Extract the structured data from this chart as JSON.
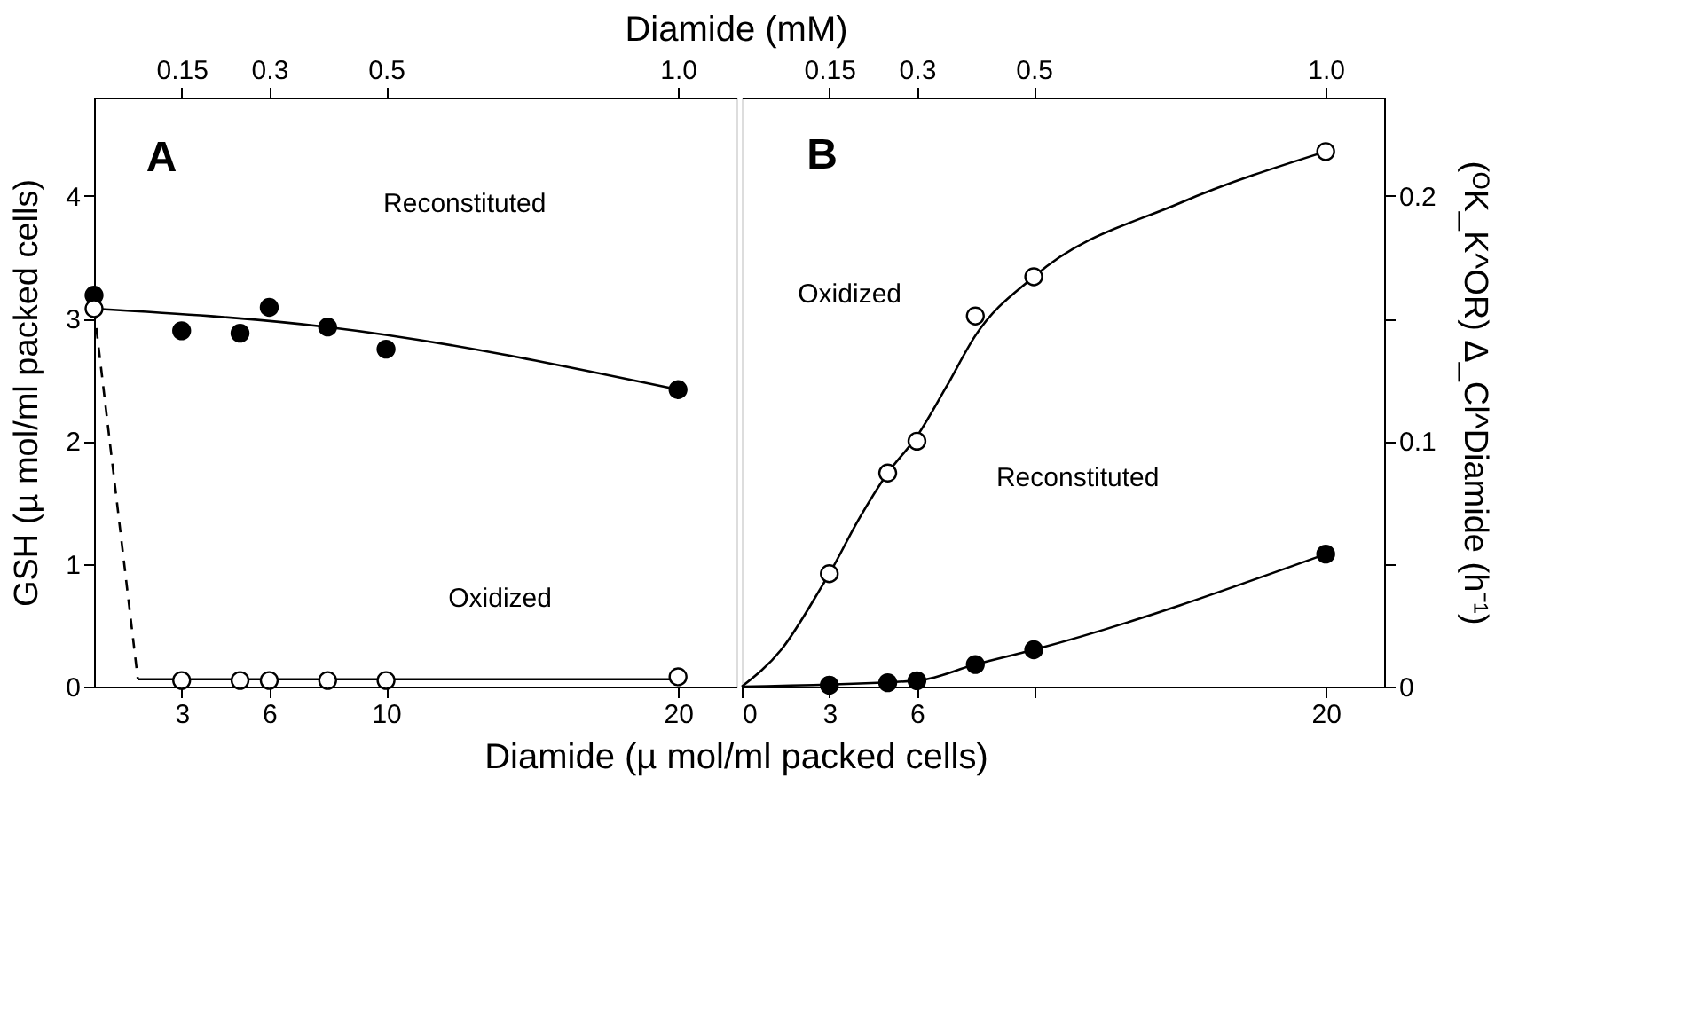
{
  "chart_data": [
    {
      "type": "scatter",
      "xlabel": "Diamide (µ mol/ml packed cells)",
      "x2label": "Diamide (mM)",
      "ylabel": "GSH (µ mol/ml packed cells)",
      "xlim": [
        0,
        22
      ],
      "xticks": [
        3,
        6,
        10,
        20
      ],
      "x2lim": [
        0,
        1.1
      ],
      "x2ticks": [
        0.15,
        0.3,
        0.5,
        {
          "value": 1.0,
          "label": "1.0"
        }
      ],
      "ylim": [
        0,
        4.8
      ],
      "yticks": [
        0,
        1,
        2,
        3,
        4
      ],
      "grid": false,
      "series": [
        {
          "type": "line",
          "color": "#000000",
          "line_style": "solid",
          "x": [
            0,
            8,
            20
          ],
          "values": [
            3.08,
            2.93,
            2.42
          ]
        },
        {
          "type": "line",
          "color": "#000000",
          "line_style": "dashed",
          "x": [
            0,
            1.5
          ],
          "values": [
            3.08,
            0.06
          ]
        },
        {
          "type": "line",
          "color": "#000000",
          "line_style": "solid",
          "x": [
            1.5,
            20
          ],
          "values": [
            0.06,
            0.06
          ]
        },
        {
          "color": "#000000",
          "marker": "circle",
          "x": [
            0,
            3,
            5,
            6,
            8,
            10,
            20
          ],
          "values": [
            3.19,
            2.9,
            2.88,
            3.09,
            2.93,
            2.75,
            2.42
          ]
        },
        {
          "color": "#ffffff",
          "marker": "circle",
          "x": [
            0,
            3,
            5,
            6,
            8,
            10,
            20
          ],
          "values": [
            3.08,
            0.05,
            0.05,
            0.05,
            0.05,
            0.05,
            0.08
          ]
        }
      ],
      "annotations": [
        "A",
        "Reconstituted",
        "Oxidized"
      ]
    },
    {
      "type": "scatter",
      "y2label": "(ᴼK_K^OR) Δ_Cl^Diamide (h⁻¹)",
      "xlim": [
        0,
        22
      ],
      "xticks": [
        0,
        3,
        6,
        {
          "value": 10,
          "label": null
        },
        20
      ],
      "x2lim": [
        0,
        1.1
      ],
      "x2ticks": [
        0.15,
        0.3,
        0.5,
        {
          "value": 1.0,
          "label": "1.0"
        }
      ],
      "y2lim": [
        0,
        0.24
      ],
      "y2ticks": [
        0,
        {
          "value": 0.05,
          "label": null
        },
        0.1,
        {
          "value": 0.15,
          "label": null
        },
        0.2
      ],
      "grid": false,
      "series": [
        {
          "type": "line",
          "axis": "y2",
          "color": "#000000",
          "line_style": "solid",
          "x": [
            0,
            1.35,
            2.75,
            3,
            4,
            5,
            6,
            7,
            8,
            10,
            15,
            20
          ],
          "values": [
            0,
            0.015,
            0.041,
            0.046,
            0.068,
            0.087,
            0.102,
            0.122,
            0.143,
            0.167,
            0.197,
            0.218
          ]
        },
        {
          "type": "line",
          "axis": "y2",
          "color": "#000000",
          "line_style": "solid",
          "x": [
            0,
            6,
            8,
            10,
            20
          ],
          "values": [
            0,
            0.0024,
            0.009,
            0.015,
            0.054
          ]
        },
        {
          "axis": "y2",
          "color": "#ffffff",
          "marker": "circle",
          "x": [
            3,
            5,
            6,
            8,
            10,
            20
          ],
          "values": [
            0.046,
            0.087,
            0.1,
            0.151,
            0.167,
            0.218
          ]
        },
        {
          "axis": "y2",
          "color": "#000000",
          "marker": "circle",
          "x": [
            3,
            5,
            6,
            8,
            10,
            20
          ],
          "values": [
            0.0006,
            0.0016,
            0.0024,
            0.009,
            0.015,
            0.054
          ]
        }
      ],
      "annotations": [
        "B",
        "Oxidized",
        "Reconstituted"
      ]
    }
  ]
}
